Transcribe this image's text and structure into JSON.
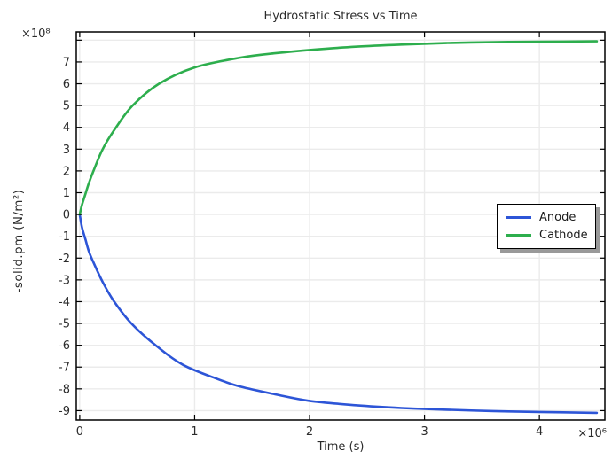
{
  "window": {
    "background": "#ffffff"
  },
  "chart_data": {
    "type": "line",
    "title": "Hydrostatic Stress vs Time",
    "xlabel": "Time (s)",
    "ylabel": "-solid.pm (N/m²)",
    "x_axis_multiplier": "×10⁶",
    "y_axis_multiplier": "×10⁸",
    "x_unit_scale": 1000000,
    "y_unit_scale": 100000000,
    "xlim": [
      -0.03,
      4.57
    ],
    "ylim": [
      -9.43,
      8.38
    ],
    "xticks": [
      0,
      1,
      2,
      3,
      4
    ],
    "xtick_labels": [
      "0",
      "1",
      "2",
      "3",
      "4"
    ],
    "yticks": [
      -9,
      -8,
      -7,
      -6,
      -5,
      -4,
      -3,
      -2,
      -1,
      0,
      1,
      2,
      3,
      4,
      5,
      6,
      7,
      8
    ],
    "ytick_labels": [
      "-9",
      "-8",
      "-7",
      "-6",
      "-5",
      "-4",
      "-3",
      "-2",
      "-1",
      "0",
      "1",
      "2",
      "3",
      "4",
      "5",
      "6",
      "7",
      ""
    ],
    "grid": true,
    "legend_position": "middle-right",
    "colors": {
      "grid": "#ebebeb",
      "frame": "#000000",
      "tick": "#000000",
      "text": "#2b2b2b",
      "legend_shadow": "#999999"
    },
    "series": [
      {
        "name": "Anode",
        "color": "#2d55d7",
        "x": [
          0,
          0.02,
          0.05,
          0.08,
          0.12,
          0.2,
          0.3,
          0.45,
          0.66,
          0.9,
          1.2,
          1.4,
          1.7,
          2.0,
          2.4,
          2.8,
          3.2,
          3.6,
          4.0,
          4.5
        ],
        "y": [
          0,
          -0.6,
          -1.15,
          -1.7,
          -2.2,
          -3.1,
          -4.0,
          -5.0,
          -6.0,
          -6.9,
          -7.55,
          -7.9,
          -8.25,
          -8.55,
          -8.75,
          -8.88,
          -8.96,
          -9.02,
          -9.06,
          -9.1
        ]
      },
      {
        "name": "Cathode",
        "color": "#2dae4d",
        "x": [
          0,
          0.02,
          0.05,
          0.08,
          0.12,
          0.2,
          0.31,
          0.46,
          0.69,
          1.0,
          1.4,
          1.7,
          2.0,
          2.4,
          2.8,
          3.2,
          3.6,
          4.0,
          4.5
        ],
        "y": [
          0,
          0.45,
          0.95,
          1.45,
          2.0,
          3.0,
          3.95,
          5.0,
          6.0,
          6.75,
          7.2,
          7.4,
          7.55,
          7.7,
          7.8,
          7.87,
          7.91,
          7.93,
          7.95
        ]
      }
    ]
  }
}
